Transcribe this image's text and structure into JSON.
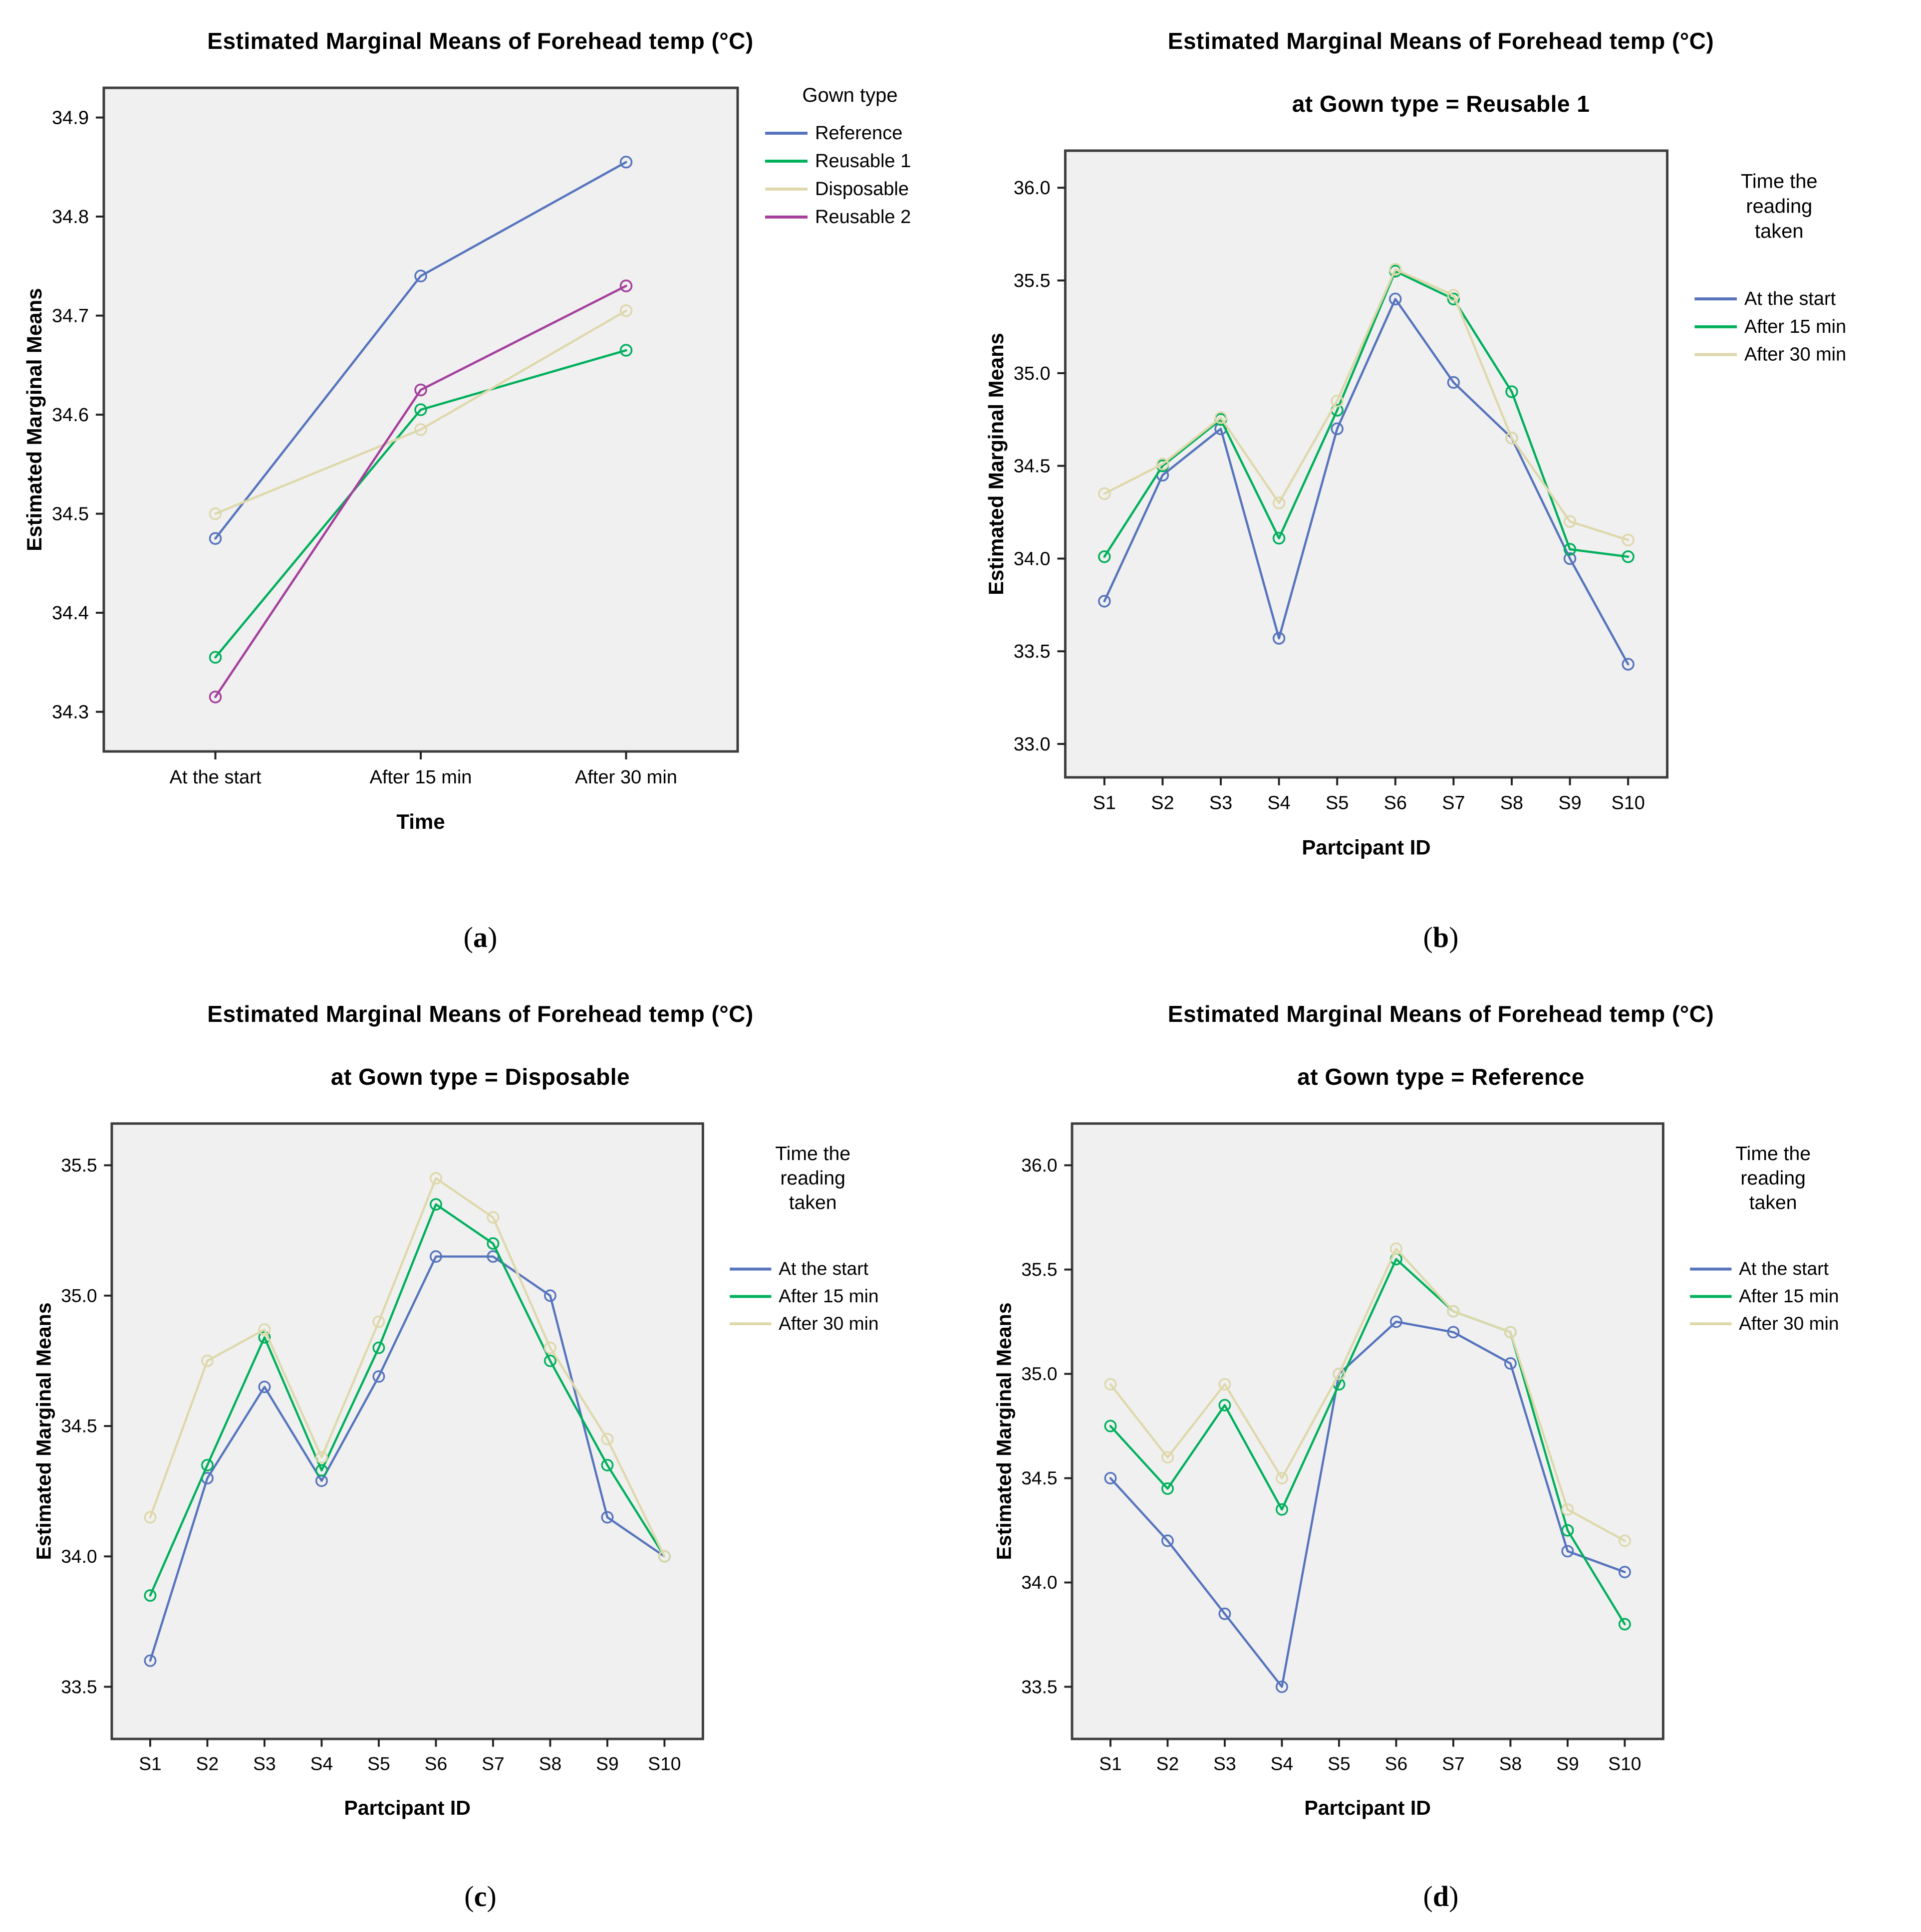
{
  "figure": {
    "main_title": "Estimated Marginal Means of Forehead temp (°C)",
    "colors": {
      "series_blue": "#5674bd",
      "series_green": "#00b05c",
      "series_tan": "#ded8ab",
      "series_magenta": "#a53e9c",
      "plot_background": "#f0f0f0",
      "plot_border": "#3d3d3d"
    }
  },
  "chart_data": [
    {
      "id": "a",
      "type": "line",
      "title": "Estimated Marginal Means of Forehead temp (°C)",
      "subtitle": "",
      "caption": "a",
      "xlabel": "Time",
      "ylabel": "Estimated Marginal Means",
      "legend_title_lines": [
        "Gown type"
      ],
      "legend_position": "right",
      "grid": false,
      "plot_bg": "#f0f0f0",
      "categories": [
        "At the start",
        "After 15 min",
        "After 30 min"
      ],
      "x_padding_frac": 0.176,
      "ylim": [
        34.26,
        34.93
      ],
      "yticks": [
        34.3,
        34.4,
        34.5,
        34.6,
        34.7,
        34.8,
        34.9
      ],
      "series": [
        {
          "name": "Reference",
          "color": "#5674bd",
          "values": [
            34.475,
            34.74,
            34.855
          ]
        },
        {
          "name": "Reusable 1",
          "color": "#00b05c",
          "values": [
            34.355,
            34.605,
            34.665
          ]
        },
        {
          "name": "Disposable",
          "color": "#ded8ab",
          "values": [
            34.5,
            34.585,
            34.705
          ]
        },
        {
          "name": "Reusable 2",
          "color": "#a53e9c",
          "values": [
            34.315,
            34.625,
            34.73
          ]
        }
      ]
    },
    {
      "id": "b",
      "type": "line",
      "title": "Estimated Marginal Means of Forehead temp (°C)",
      "subtitle": "at Gown type = Reusable 1",
      "caption": "b",
      "xlabel": "Partcipant ID",
      "ylabel": "Estimated Marginal Means",
      "legend_title_lines": [
        "Time the",
        "reading",
        "taken"
      ],
      "legend_position": "right",
      "grid": false,
      "plot_bg": "#f0f0f0",
      "categories": [
        "S1",
        "S2",
        "S3",
        "S4",
        "S5",
        "S6",
        "S7",
        "S8",
        "S9",
        "S10"
      ],
      "x_padding_frac": 0.065,
      "ylim": [
        32.82,
        36.2
      ],
      "yticks": [
        33.0,
        33.5,
        34.0,
        34.5,
        35.0,
        35.5,
        36.0
      ],
      "series": [
        {
          "name": "At the start",
          "color": "#5674bd",
          "values": [
            33.77,
            34.45,
            34.7,
            33.57,
            34.7,
            35.4,
            34.95,
            34.65,
            34.0,
            33.43
          ]
        },
        {
          "name": "After 15 min",
          "color": "#00b05c",
          "values": [
            34.01,
            34.5,
            34.75,
            34.11,
            34.8,
            35.55,
            35.4,
            34.9,
            34.05,
            34.01
          ]
        },
        {
          "name": "After 30 min",
          "color": "#ded8ab",
          "values": [
            34.35,
            34.51,
            34.76,
            34.3,
            34.85,
            35.56,
            35.42,
            34.65,
            34.2,
            34.1
          ]
        }
      ]
    },
    {
      "id": "c",
      "type": "line",
      "title": "Estimated Marginal Means of Forehead temp (°C)",
      "subtitle": "at Gown type = Disposable",
      "caption": "c",
      "xlabel": "Partcipant ID",
      "ylabel": "Estimated Marginal Means",
      "legend_title_lines": [
        "Time the",
        "reading",
        "taken"
      ],
      "legend_position": "right",
      "grid": false,
      "plot_bg": "#f0f0f0",
      "categories": [
        "S1",
        "S2",
        "S3",
        "S4",
        "S5",
        "S6",
        "S7",
        "S8",
        "S9",
        "S10"
      ],
      "x_padding_frac": 0.065,
      "ylim": [
        33.3,
        35.66
      ],
      "yticks": [
        33.5,
        34.0,
        34.5,
        35.0,
        35.5
      ],
      "series": [
        {
          "name": "At the start",
          "color": "#5674bd",
          "values": [
            33.6,
            34.3,
            34.65,
            34.29,
            34.69,
            35.15,
            35.15,
            35.0,
            34.15,
            34.0
          ]
        },
        {
          "name": "After 15 min",
          "color": "#00b05c",
          "values": [
            33.85,
            34.35,
            34.84,
            34.33,
            34.8,
            35.35,
            35.2,
            34.75,
            34.35,
            34.0
          ]
        },
        {
          "name": "After 30 min",
          "color": "#ded8ab",
          "values": [
            34.15,
            34.75,
            34.87,
            34.38,
            34.9,
            35.45,
            35.3,
            34.8,
            34.45,
            34.0
          ]
        }
      ]
    },
    {
      "id": "d",
      "type": "line",
      "title": "Estimated Marginal Means of Forehead temp (°C)",
      "subtitle": "at Gown type = Reference",
      "caption": "d",
      "xlabel": "Partcipant ID",
      "ylabel": "Estimated Marginal Means",
      "legend_title_lines": [
        "Time the",
        "reading",
        "taken"
      ],
      "legend_position": "right",
      "grid": false,
      "plot_bg": "#f0f0f0",
      "categories": [
        "S1",
        "S2",
        "S3",
        "S4",
        "S5",
        "S6",
        "S7",
        "S8",
        "S9",
        "S10"
      ],
      "x_padding_frac": 0.065,
      "ylim": [
        33.25,
        36.2
      ],
      "yticks": [
        33.5,
        34.0,
        34.5,
        35.0,
        35.5,
        36.0
      ],
      "series": [
        {
          "name": "At the start",
          "color": "#5674bd",
          "values": [
            34.5,
            34.2,
            33.85,
            33.5,
            35.0,
            35.25,
            35.2,
            35.05,
            34.15,
            34.05
          ]
        },
        {
          "name": "After 15 min",
          "color": "#00b05c",
          "values": [
            34.75,
            34.45,
            34.85,
            34.35,
            34.95,
            35.55,
            35.3,
            35.2,
            34.25,
            33.8
          ]
        },
        {
          "name": "After 30 min",
          "color": "#ded8ab",
          "values": [
            34.95,
            34.6,
            34.95,
            34.5,
            35.0,
            35.6,
            35.3,
            35.2,
            34.35,
            34.2
          ]
        }
      ]
    }
  ]
}
